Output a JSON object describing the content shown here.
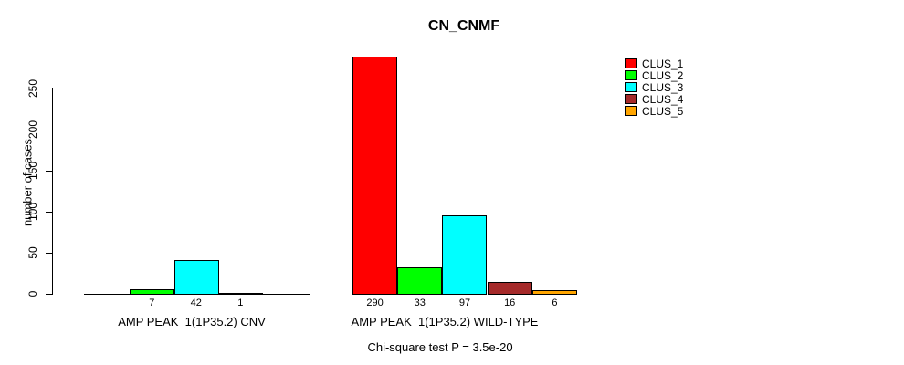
{
  "title": "CN_CNMF",
  "y_axis": {
    "label": "number of cases",
    "tick_labels": [
      "0",
      "50",
      "100",
      "150",
      "200",
      "250"
    ]
  },
  "legend": {
    "items": [
      {
        "label": "CLUS_1",
        "color": "#FF0000"
      },
      {
        "label": "CLUS_2",
        "color": "#00FF00"
      },
      {
        "label": "CLUS_3",
        "color": "#00FFFF"
      },
      {
        "label": "CLUS_4",
        "color": "#A52A2A"
      },
      {
        "label": "CLUS_5",
        "color": "#FFA500"
      }
    ]
  },
  "footnote": "Chi-square test P = 3.5e-20",
  "chart_data": {
    "type": "bar",
    "title": "CN_CNMF",
    "xlabel": "",
    "ylabel": "number of cases",
    "ylim": [
      0,
      295
    ],
    "yticks": [
      0,
      50,
      100,
      150,
      200,
      250
    ],
    "grid": false,
    "legend_position": "top-right",
    "series": [
      "CLUS_1",
      "CLUS_2",
      "CLUS_3",
      "CLUS_4",
      "CLUS_5"
    ],
    "series_colors": [
      "#FF0000",
      "#00FF00",
      "#00FFFF",
      "#A52A2A",
      "#FFA500"
    ],
    "groups": [
      {
        "label": "AMP PEAK  1(1P35.2) CNV",
        "values": [
          0,
          7,
          42,
          1,
          0
        ],
        "bar_labels": [
          "",
          "7",
          "42",
          "1",
          ""
        ]
      },
      {
        "label": "AMP PEAK  1(1P35.2) WILD-TYPE",
        "values": [
          290,
          33,
          97,
          16,
          6
        ],
        "bar_labels": [
          "290",
          "33",
          "97",
          "16",
          "6"
        ]
      }
    ],
    "annotation": "Chi-square test P = 3.5e-20"
  }
}
